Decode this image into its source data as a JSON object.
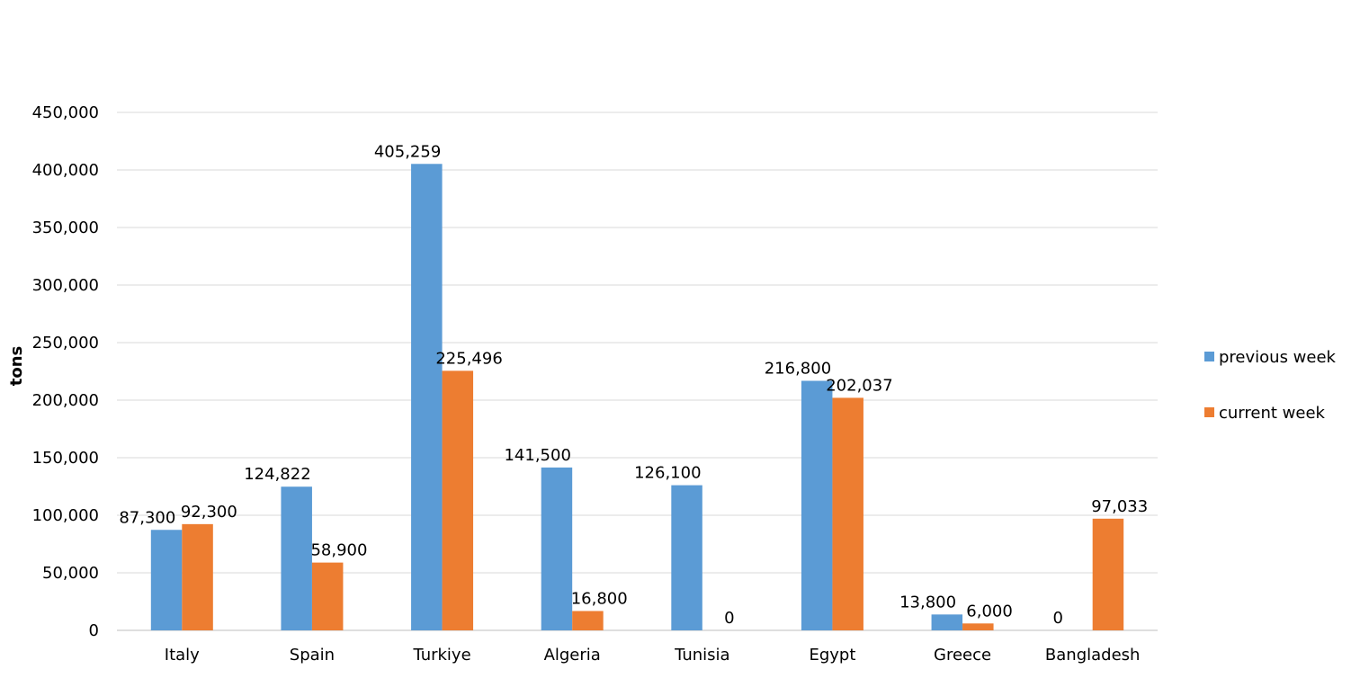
{
  "chart_data": {
    "type": "bar",
    "ylabel": "tons",
    "xlabel": "",
    "ylim": [
      0,
      450000
    ],
    "yticks": [
      0,
      50000,
      100000,
      150000,
      200000,
      250000,
      300000,
      350000,
      400000,
      450000
    ],
    "grid": true,
    "legend_position": "right",
    "categories": [
      "Italy",
      "Spain",
      "Turkiye",
      "Algeria",
      "Tunisia",
      "Egypt",
      "Greece",
      "Bangladesh"
    ],
    "series": [
      {
        "name": "previous week",
        "color": "#5B9BD5",
        "values": [
          87300,
          124822,
          405259,
          141500,
          126100,
          216800,
          13800,
          0
        ]
      },
      {
        "name": "current week",
        "color": "#ED7D31",
        "values": [
          92300,
          58900,
          225496,
          16800,
          0,
          202037,
          6000,
          97033
        ]
      }
    ]
  }
}
